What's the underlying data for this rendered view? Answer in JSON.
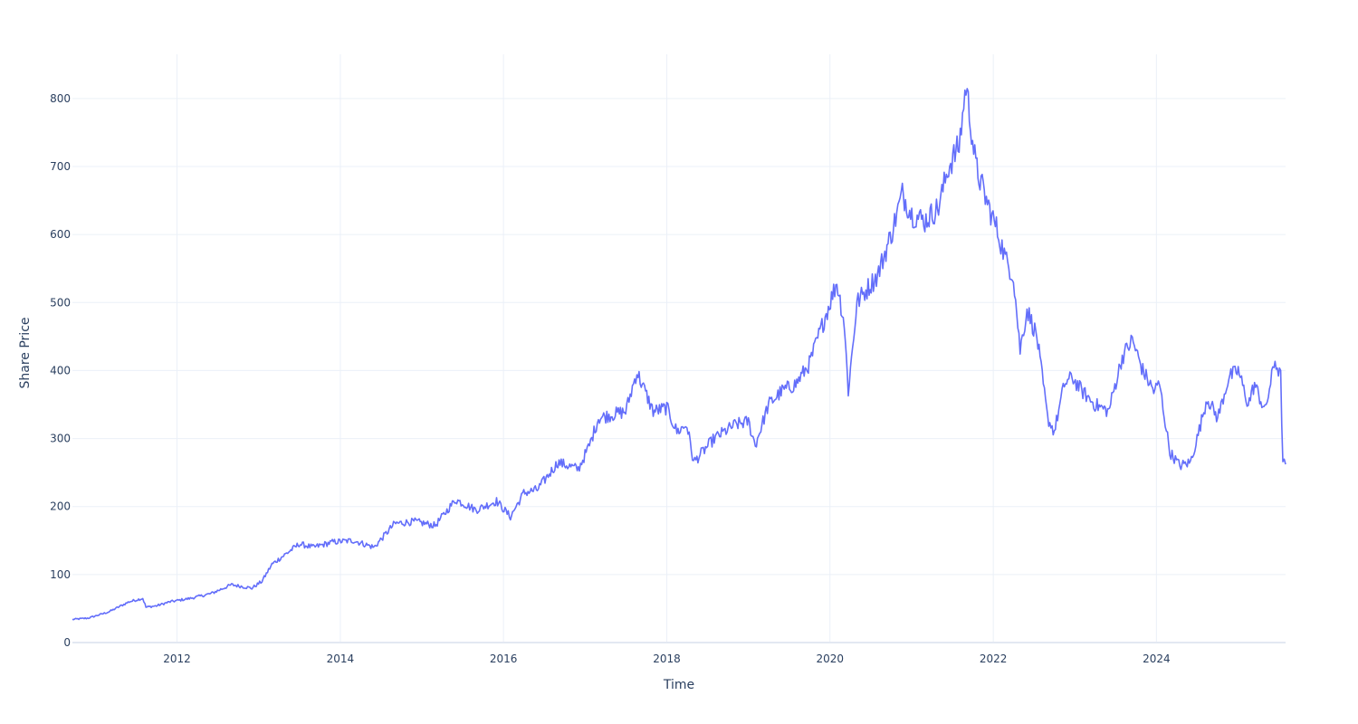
{
  "chart_data": {
    "type": "line",
    "xlabel": "Time",
    "ylabel": "Share Price",
    "xlim": [
      "2010-09-20",
      "2025-08-01"
    ],
    "ylim": [
      0,
      865
    ],
    "grid": true,
    "x_ticks": [
      "2012",
      "2014",
      "2016",
      "2018",
      "2020",
      "2022",
      "2024"
    ],
    "y_ticks": [
      "0",
      "100",
      "200",
      "300",
      "400",
      "500",
      "600",
      "700",
      "800"
    ],
    "colors": {
      "line": "#636efa",
      "grid": "#ebf0f8",
      "text": "#2a3f5f"
    },
    "series": [
      {
        "x": [
          "2010-09-20",
          "2010-12-01",
          "2011-03-01",
          "2011-06-01",
          "2011-08-01",
          "2011-08-15",
          "2011-10-01",
          "2011-12-01",
          "2012-03-01",
          "2012-06-01",
          "2012-09-01",
          "2012-12-01",
          "2013-01-15",
          "2013-03-01",
          "2013-05-01",
          "2013-07-01",
          "2013-09-01",
          "2013-12-01",
          "2014-03-01",
          "2014-06-01",
          "2014-09-01",
          "2014-12-01",
          "2015-03-01",
          "2015-06-01",
          "2015-09-01",
          "2015-12-01",
          "2016-02-01",
          "2016-04-01",
          "2016-06-01",
          "2016-09-01",
          "2016-12-01",
          "2017-01-20",
          "2017-03-01",
          "2017-05-01",
          "2017-07-01",
          "2017-08-20",
          "2017-11-01",
          "2018-01-01",
          "2018-02-15",
          "2018-04-01",
          "2018-05-01",
          "2018-08-01",
          "2018-11-01",
          "2019-01-01",
          "2019-02-01",
          "2019-04-01",
          "2019-06-01",
          "2019-08-01",
          "2019-10-01",
          "2019-12-01",
          "2020-02-01",
          "2020-03-05",
          "2020-03-23",
          "2020-05-01",
          "2020-06-15",
          "2020-08-01",
          "2020-10-01",
          "2020-11-20",
          "2021-01-01",
          "2021-03-01",
          "2021-05-01",
          "2021-06-15",
          "2021-08-01",
          "2021-09-01",
          "2021-10-15",
          "2021-12-01",
          "2022-01-15",
          "2022-03-01",
          "2022-04-01",
          "2022-05-01",
          "2022-06-01",
          "2022-07-15",
          "2022-09-01",
          "2022-10-01",
          "2022-11-15",
          "2022-12-20",
          "2023-02-01",
          "2023-04-01",
          "2023-06-01",
          "2023-08-01",
          "2023-09-15",
          "2023-11-01",
          "2023-12-20",
          "2024-01-15",
          "2024-03-01",
          "2024-04-15",
          "2024-06-01",
          "2024-07-01",
          "2024-08-15",
          "2024-10-01",
          "2024-11-20",
          "2025-01-01",
          "2025-02-15",
          "2025-03-15",
          "2025-05-01",
          "2025-06-15",
          "2025-07-10",
          "2025-07-20",
          "2025-08-01"
        ],
        "y": [
          34,
          36,
          45,
          60,
          65,
          52,
          54,
          60,
          65,
          72,
          85,
          80,
          90,
          115,
          130,
          145,
          140,
          148,
          150,
          140,
          175,
          178,
          172,
          210,
          195,
          208,
          185,
          220,
          225,
          265,
          255,
          290,
          330,
          335,
          340,
          398,
          340,
          345,
          310,
          320,
          265,
          300,
          320,
          325,
          290,
          350,
          370,
          380,
          410,
          470,
          530,
          470,
          370,
          500,
          520,
          540,
          600,
          660,
          630,
          620,
          640,
          700,
          730,
          820,
          700,
          650,
          610,
          560,
          540,
          430,
          490,
          450,
          330,
          310,
          380,
          390,
          370,
          350,
          340,
          420,
          445,
          400,
          370,
          380,
          280,
          260,
          265,
          300,
          360,
          330,
          390,
          400,
          350,
          380,
          340,
          415,
          390,
          265,
          262
        ]
      }
    ]
  }
}
